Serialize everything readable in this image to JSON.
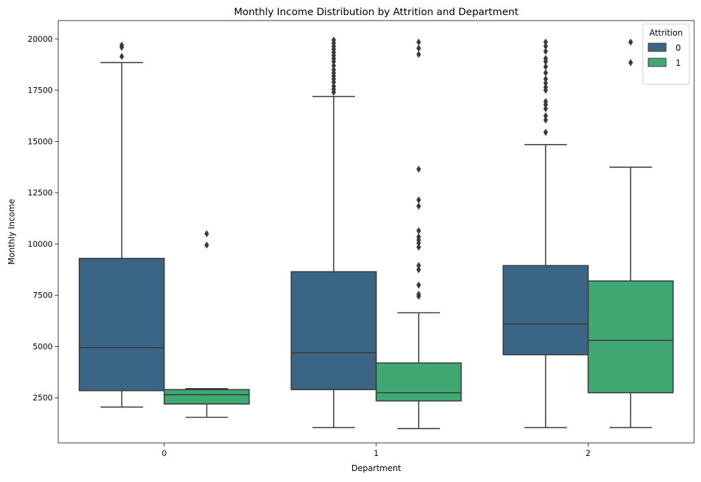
{
  "chart_data": {
    "type": "box",
    "title": "Monthly Income Distribution by Attrition and Department",
    "xlabel": "Department",
    "ylabel": "Monthly Income",
    "categories": [
      "0",
      "1",
      "2"
    ],
    "ylim": [
      300,
      20900
    ],
    "yticks": [
      2500,
      5000,
      7500,
      10000,
      12500,
      15000,
      17500,
      20000
    ],
    "grid": false,
    "legend": {
      "title": "Attrition",
      "placement": "top-right"
    },
    "series": [
      {
        "name": "0",
        "color": "#3b6584",
        "boxes": [
          {
            "category": "0",
            "whisker_low": 2050,
            "q1": 2850,
            "median": 4950,
            "q3": 9300,
            "whisker_high": 18850,
            "outliers": [
              19150,
              19600,
              19700
            ]
          },
          {
            "category": "1",
            "whisker_low": 1050,
            "q1": 2900,
            "median": 4700,
            "q3": 8650,
            "whisker_high": 17200,
            "outliers": [
              17400,
              17550,
              17700,
              17900,
              18050,
              18200,
              18350,
              18500,
              18700,
              18900,
              19050,
              19200,
              19350,
              19500,
              19650,
              19800,
              19950
            ]
          },
          {
            "category": "2",
            "whisker_low": 1050,
            "q1": 4600,
            "median": 6100,
            "q3": 8950,
            "whisker_high": 14850,
            "outliers": [
              15450,
              16050,
              16250,
              16600,
              16800,
              16950,
              17500,
              17650,
              17850,
              18050,
              18350,
              18650,
              18900,
              19050,
              19400,
              19650,
              19850
            ]
          }
        ]
      },
      {
        "name": "1",
        "color": "#3fa873",
        "boxes": [
          {
            "category": "0",
            "whisker_low": 1550,
            "q1": 2200,
            "median": 2650,
            "q3": 2900,
            "whisker_high": 2950,
            "outliers": [
              9950,
              10500
            ]
          },
          {
            "category": "1",
            "whisker_low": 1000,
            "q1": 2350,
            "median": 2750,
            "q3": 4200,
            "whisker_high": 6650,
            "outliers": [
              7450,
              7550,
              8000,
              8750,
              8950,
              9850,
              10050,
              10200,
              10350,
              10650,
              11850,
              12150,
              13650,
              19250,
              19550,
              19850
            ]
          },
          {
            "category": "2",
            "whisker_low": 1050,
            "q1": 2750,
            "median": 5300,
            "q3": 8200,
            "whisker_high": 13750,
            "outliers": [
              18850,
              19850
            ]
          }
        ]
      }
    ]
  }
}
